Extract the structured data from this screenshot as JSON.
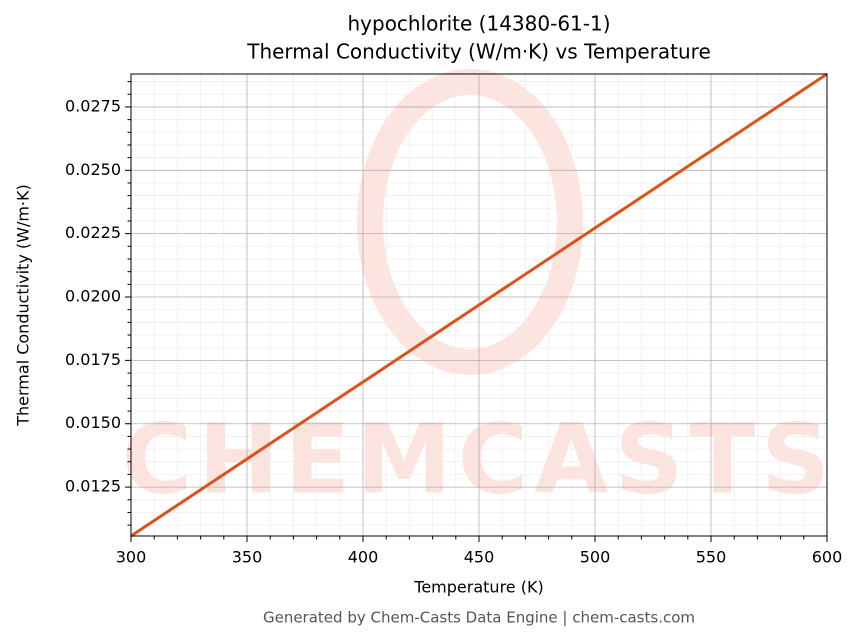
{
  "chart_data": {
    "type": "line",
    "title": "hypochlorite (14380-61-1)",
    "subtitle": "Thermal Conductivity (W/m·K) vs Temperature",
    "x_label": "Temperature (K)",
    "y_label": "Thermal Conductivity (W/m·K)",
    "footer": "Generated by Chem-Casts Data Engine | chem-casts.com",
    "watermark": "CHEMCASTS",
    "x": [
      300,
      600
    ],
    "series": [
      {
        "name": "Thermal Conductivity",
        "color": "#d9531e",
        "values": [
          0.01057,
          0.0288
        ]
      }
    ],
    "xlim": [
      300,
      600
    ],
    "ylim": [
      0.01057,
      0.0288
    ],
    "xticks": [
      300,
      350,
      400,
      450,
      500,
      550,
      600
    ],
    "yticks": [
      {
        "value": 0.0125,
        "label": "0.0125"
      },
      {
        "value": 0.015,
        "label": "0.0150"
      },
      {
        "value": 0.0175,
        "label": "0.0175"
      },
      {
        "value": 0.02,
        "label": "0.0200"
      },
      {
        "value": 0.0225,
        "label": "0.0225"
      },
      {
        "value": 0.025,
        "label": "0.0250"
      },
      {
        "value": 0.0275,
        "label": "0.0275"
      }
    ],
    "xminorticks": [
      310,
      320,
      330,
      340,
      360,
      370,
      380,
      390,
      410,
      420,
      430,
      440,
      460,
      470,
      480,
      490,
      510,
      520,
      530,
      540,
      560,
      570,
      580,
      590
    ],
    "yminorticks": [
      0.011,
      0.0115,
      0.012,
      0.013,
      0.0135,
      0.014,
      0.0145,
      0.0155,
      0.016,
      0.0165,
      0.017,
      0.018,
      0.0185,
      0.019,
      0.0195,
      0.0205,
      0.021,
      0.0215,
      0.022,
      0.023,
      0.0235,
      0.024,
      0.0245,
      0.0255,
      0.026,
      0.0265,
      0.027,
      0.028,
      0.0285
    ],
    "grid": true
  }
}
